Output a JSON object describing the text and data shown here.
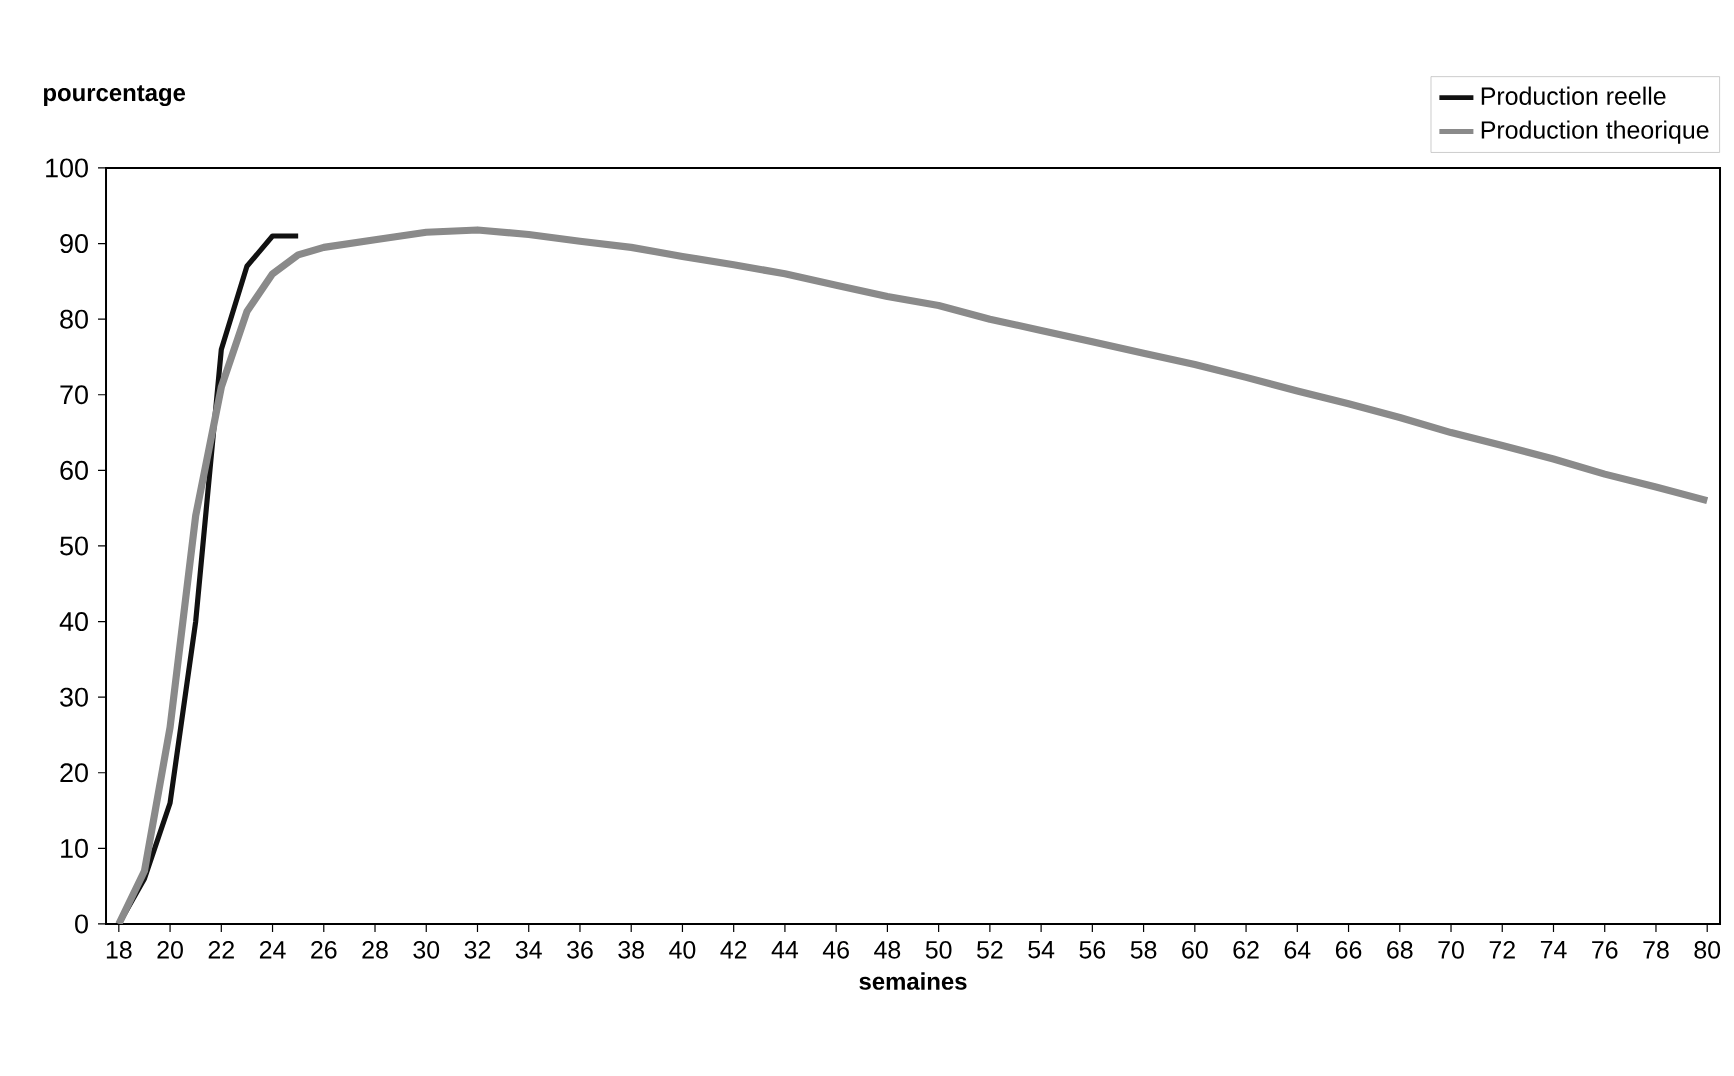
{
  "chart_data": {
    "type": "line",
    "xlabel": "semaines",
    "ylabel": "pourcentage",
    "xlim": [
      17.5,
      80.5
    ],
    "ylim": [
      0,
      100
    ],
    "xticks": [
      18,
      20,
      22,
      24,
      26,
      28,
      30,
      32,
      34,
      36,
      38,
      40,
      42,
      44,
      46,
      48,
      50,
      52,
      54,
      56,
      58,
      60,
      62,
      64,
      66,
      68,
      70,
      72,
      74,
      76,
      78,
      80
    ],
    "yticks": [
      0,
      10,
      20,
      30,
      40,
      50,
      60,
      70,
      80,
      90,
      100
    ],
    "legend": "top right",
    "marker": "none",
    "line_style": "solid",
    "series": [
      {
        "name": "Production reelle",
        "color": "#111111",
        "x": [
          18,
          19,
          20,
          21,
          22,
          23,
          24,
          25
        ],
        "values": [
          0,
          6,
          16,
          40,
          76,
          87,
          91,
          91
        ]
      },
      {
        "name": "Production theorique",
        "color": "#8a8a8a",
        "x": [
          18,
          19,
          20,
          21,
          22,
          23,
          24,
          25,
          26,
          28,
          30,
          32,
          34,
          36,
          38,
          40,
          42,
          44,
          46,
          48,
          50,
          52,
          54,
          56,
          58,
          60,
          62,
          64,
          66,
          68,
          70,
          72,
          74,
          76,
          78,
          80
        ],
        "values": [
          0,
          7,
          26,
          54,
          71,
          81,
          86,
          88.5,
          89.5,
          90.5,
          91.5,
          91.8,
          91.2,
          90.3,
          89.5,
          88.3,
          87.2,
          86,
          84.5,
          83,
          81.8,
          80,
          78.5,
          77,
          75.5,
          74,
          72.3,
          70.5,
          68.8,
          67,
          65,
          63.3,
          61.5,
          59.5,
          57.8,
          56
        ]
      }
    ]
  }
}
